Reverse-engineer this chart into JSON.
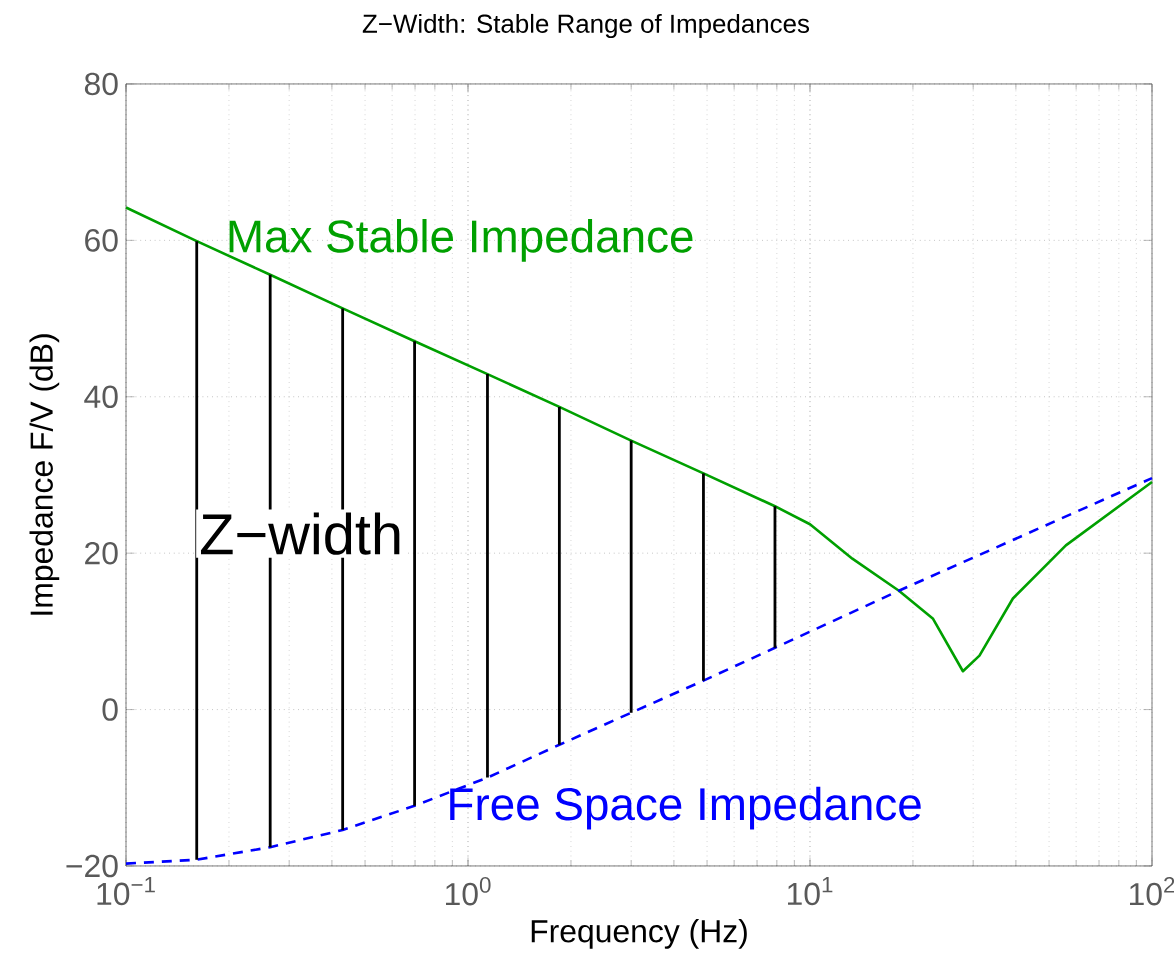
{
  "chart_data": {
    "type": "line",
    "title": "Z−Width: Stable Range of Impedances",
    "xlabel": "Frequency  (Hz)",
    "ylabel": "Impedance F/V (dB)",
    "log": "x",
    "grid": true,
    "xlim": [
      0.1,
      100
    ],
    "ylim": [
      -20,
      80
    ],
    "xticks": [
      {
        "value": 0.1,
        "label": "10$^{−1}$"
      },
      {
        "value": 1,
        "label": "10$^{0}$"
      },
      {
        "value": 10,
        "label": "10$^{1}$"
      },
      {
        "value": 100,
        "label": "10$^{2}$"
      }
    ],
    "yticks": [
      {
        "value": -20,
        "label": "−20"
      },
      0,
      20,
      40,
      60,
      80
    ],
    "annotations": [
      "Z−width"
    ],
    "series": [
      {
        "name": "Max Stable Impedance",
        "color": "#00a000",
        "line_style": "solid",
        "x": [
          0.1,
          0.161,
          0.264,
          0.43,
          0.698,
          1.14,
          1.85,
          3.0,
          4.88,
          7.9,
          10,
          13.3,
          18.2,
          22.9,
          28,
          31.3,
          39.2,
          56,
          100
        ],
        "values": [
          64.2,
          59.9,
          55.6,
          51.3,
          47.1,
          42.9,
          38.7,
          34.4,
          30.2,
          26.0,
          23.7,
          19.3,
          15.2,
          11.6,
          4.9,
          6.9,
          14.2,
          21,
          29.1
        ]
      },
      {
        "name": "Free Space Impedance",
        "color": "#0000ff",
        "line_style": "dashed",
        "x": [
          0.1,
          0.161,
          0.264,
          0.43,
          0.698,
          1.14,
          1.85,
          3.0,
          4.88,
          7.9,
          18.2,
          100
        ],
        "values": [
          -19.7,
          -19.2,
          -17.6,
          -15.4,
          -12.3,
          -8.7,
          -4.5,
          -0.4,
          3.7,
          7.9,
          15.2,
          29.6
        ]
      },
      {
        "type": "bar",
        "color": "#000000",
        "x": [
          0.161,
          0.264,
          0.43,
          0.698,
          1.14,
          1.85,
          3.0,
          4.88,
          7.9
        ],
        "base": [
          -19.2,
          -17.6,
          -15.4,
          -12.3,
          -8.7,
          -4.5,
          -0.4,
          3.7,
          7.9
        ],
        "values": [
          79.1,
          73.2,
          66.7,
          59.4,
          51.6,
          43.2,
          34.8,
          26.5,
          18.1
        ]
      }
    ]
  }
}
